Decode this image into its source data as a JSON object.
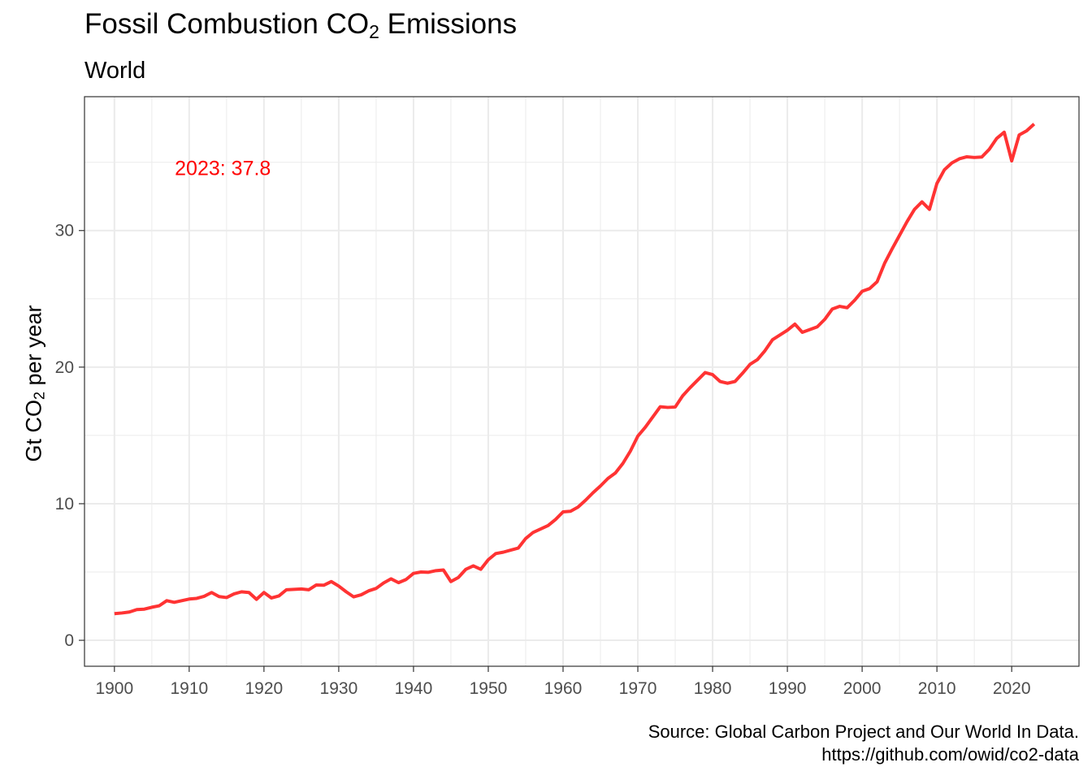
{
  "chart_data": {
    "type": "line",
    "title": {
      "main": "Fossil Combustion CO",
      "sub": "2",
      "tail": " Emissions"
    },
    "subtitle": "World",
    "ylabel": {
      "main": "Gt CO",
      "sub": "2",
      "tail": " per year"
    },
    "xlabel": "",
    "caption": [
      "Source: Global Carbon Project and Our World In Data.",
      "https://github.com/owid/co2-data"
    ],
    "annotation": "2023: 37.8",
    "xlim": [
      1896,
      2029
    ],
    "ylim": [
      -1.9,
      39.8
    ],
    "x_ticks": [
      1900,
      1910,
      1920,
      1930,
      1940,
      1950,
      1960,
      1970,
      1980,
      1990,
      2000,
      2010,
      2020
    ],
    "y_ticks": [
      0,
      10,
      20,
      30
    ],
    "grid": true,
    "line_color": "#ff3333",
    "series": [
      {
        "x": [
          1900,
          1901,
          1902,
          1903,
          1904,
          1905,
          1906,
          1907,
          1908,
          1909,
          1910,
          1911,
          1912,
          1913,
          1914,
          1915,
          1916,
          1917,
          1918,
          1919,
          1920,
          1921,
          1922,
          1923,
          1924,
          1925,
          1926,
          1927,
          1928,
          1929,
          1930,
          1931,
          1932,
          1933,
          1934,
          1935,
          1936,
          1937,
          1938,
          1939,
          1940,
          1941,
          1942,
          1943,
          1944,
          1945,
          1946,
          1947,
          1948,
          1949,
          1950,
          1951,
          1952,
          1953,
          1954,
          1955,
          1956,
          1957,
          1958,
          1959,
          1960,
          1961,
          1962,
          1963,
          1964,
          1965,
          1966,
          1967,
          1968,
          1969,
          1970,
          1971,
          1972,
          1973,
          1974,
          1975,
          1976,
          1977,
          1978,
          1979,
          1980,
          1981,
          1982,
          1983,
          1984,
          1985,
          1986,
          1987,
          1988,
          1989,
          1990,
          1991,
          1992,
          1993,
          1994,
          1995,
          1996,
          1997,
          1998,
          1999,
          2000,
          2001,
          2002,
          2003,
          2004,
          2005,
          2006,
          2007,
          2008,
          2009,
          2010,
          2011,
          2012,
          2013,
          2014,
          2015,
          2016,
          2017,
          2018,
          2019,
          2020,
          2021,
          2022,
          2023
        ],
        "values": [
          1.95,
          2.0,
          2.07,
          2.25,
          2.28,
          2.42,
          2.53,
          2.9,
          2.78,
          2.9,
          3.02,
          3.07,
          3.22,
          3.5,
          3.2,
          3.13,
          3.4,
          3.55,
          3.5,
          3.0,
          3.5,
          3.1,
          3.25,
          3.7,
          3.73,
          3.76,
          3.7,
          4.05,
          4.03,
          4.3,
          3.97,
          3.55,
          3.18,
          3.33,
          3.62,
          3.8,
          4.2,
          4.5,
          4.22,
          4.45,
          4.9,
          5.0,
          4.98,
          5.1,
          5.15,
          4.3,
          4.6,
          5.2,
          5.45,
          5.2,
          5.9,
          6.35,
          6.45,
          6.6,
          6.75,
          7.45,
          7.9,
          8.15,
          8.4,
          8.85,
          9.4,
          9.45,
          9.75,
          10.25,
          10.8,
          11.3,
          11.85,
          12.25,
          12.95,
          13.85,
          14.95,
          15.6,
          16.35,
          17.1,
          17.05,
          17.08,
          17.9,
          18.5,
          19.05,
          19.6,
          19.45,
          18.95,
          18.82,
          18.95,
          19.55,
          20.2,
          20.55,
          21.2,
          22.0,
          22.35,
          22.7,
          23.15,
          22.55,
          22.75,
          22.95,
          23.5,
          24.25,
          24.45,
          24.35,
          24.9,
          25.55,
          25.75,
          26.25,
          27.6,
          28.65,
          29.65,
          30.65,
          31.55,
          32.1,
          31.55,
          33.45,
          34.45,
          34.95,
          35.25,
          35.4,
          35.35,
          35.38,
          35.95,
          36.75,
          37.2,
          35.1,
          37.0,
          37.3,
          37.8
        ]
      }
    ]
  }
}
